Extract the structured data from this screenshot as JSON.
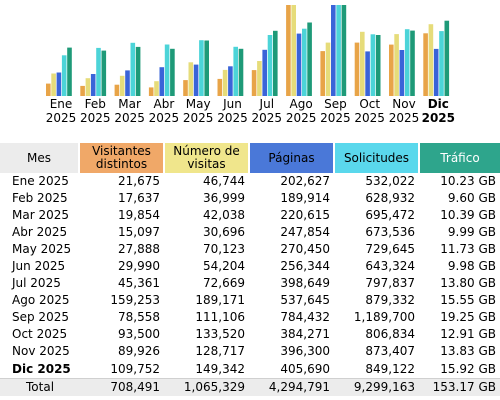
{
  "colors": {
    "visitors": "#e8a448",
    "visits": "#e6dc7a",
    "pages": "#3a64d8",
    "hits": "#4cd4d8",
    "bandwidth": "#1e9a78"
  },
  "headers": {
    "month": "Mes",
    "visitors": "Visitantes distintos",
    "visits": "Número de visitas",
    "pages": "Páginas",
    "hits": "Solicitudes",
    "bandwidth": "Tráfico"
  },
  "chart_data": {
    "type": "bar",
    "categories": [
      "Ene 2025",
      "Feb 2025",
      "Mar 2025",
      "Abr 2025",
      "May 2025",
      "Jun 2025",
      "Jul 2025",
      "Ago 2025",
      "Sep 2025",
      "Oct 2025",
      "Nov 2025",
      "Dic 2025"
    ],
    "series": [
      {
        "name": "Visitantes distintos",
        "values": [
          21675,
          17637,
          19854,
          15097,
          27888,
          29990,
          45361,
          159253,
          78558,
          93500,
          89926,
          109752
        ]
      },
      {
        "name": "Número de visitas",
        "values": [
          46744,
          36999,
          42038,
          30696,
          70123,
          54204,
          72669,
          189171,
          111106,
          133520,
          128717,
          149342
        ]
      },
      {
        "name": "Páginas",
        "values": [
          202627,
          189914,
          220615,
          247854,
          270450,
          256344,
          398649,
          537645,
          784432,
          384271,
          396300,
          405690
        ]
      },
      {
        "name": "Solicitudes",
        "values": [
          532022,
          628932,
          695472,
          673536,
          729645,
          643324,
          797837,
          879332,
          1189700,
          806834,
          873407,
          849122
        ]
      },
      {
        "name": "Tráfico",
        "values": [
          10.23,
          9.6,
          10.39,
          9.99,
          11.73,
          9.98,
          13.8,
          15.55,
          19.25,
          12.91,
          13.83,
          15.92
        ]
      }
    ]
  },
  "months": [
    {
      "m": "Ene",
      "y": "2025"
    },
    {
      "m": "Feb",
      "y": "2025"
    },
    {
      "m": "Mar",
      "y": "2025"
    },
    {
      "m": "Abr",
      "y": "2025"
    },
    {
      "m": "May",
      "y": "2025"
    },
    {
      "m": "Jun",
      "y": "2025"
    },
    {
      "m": "Jul",
      "y": "2025"
    },
    {
      "m": "Ago",
      "y": "2025"
    },
    {
      "m": "Sep",
      "y": "2025"
    },
    {
      "m": "Oct",
      "y": "2025"
    },
    {
      "m": "Nov",
      "y": "2025"
    },
    {
      "m": "Dic",
      "y": "2025"
    }
  ],
  "rows": [
    {
      "month": "Ene 2025",
      "visitors": "21,675",
      "visits": "46,744",
      "pages": "202,627",
      "hits": "532,022",
      "bandwidth": "10.23 GB"
    },
    {
      "month": "Feb 2025",
      "visitors": "17,637",
      "visits": "36,999",
      "pages": "189,914",
      "hits": "628,932",
      "bandwidth": "9.60 GB"
    },
    {
      "month": "Mar 2025",
      "visitors": "19,854",
      "visits": "42,038",
      "pages": "220,615",
      "hits": "695,472",
      "bandwidth": "10.39 GB"
    },
    {
      "month": "Abr 2025",
      "visitors": "15,097",
      "visits": "30,696",
      "pages": "247,854",
      "hits": "673,536",
      "bandwidth": "9.99 GB"
    },
    {
      "month": "May 2025",
      "visitors": "27,888",
      "visits": "70,123",
      "pages": "270,450",
      "hits": "729,645",
      "bandwidth": "11.73 GB"
    },
    {
      "month": "Jun 2025",
      "visitors": "29,990",
      "visits": "54,204",
      "pages": "256,344",
      "hits": "643,324",
      "bandwidth": "9.98 GB"
    },
    {
      "month": "Jul 2025",
      "visitors": "45,361",
      "visits": "72,669",
      "pages": "398,649",
      "hits": "797,837",
      "bandwidth": "13.80 GB"
    },
    {
      "month": "Ago 2025",
      "visitors": "159,253",
      "visits": "189,171",
      "pages": "537,645",
      "hits": "879,332",
      "bandwidth": "15.55 GB"
    },
    {
      "month": "Sep 2025",
      "visitors": "78,558",
      "visits": "111,106",
      "pages": "784,432",
      "hits": "1,189,700",
      "bandwidth": "19.25 GB"
    },
    {
      "month": "Oct 2025",
      "visitors": "93,500",
      "visits": "133,520",
      "pages": "384,271",
      "hits": "806,834",
      "bandwidth": "12.91 GB"
    },
    {
      "month": "Nov 2025",
      "visitors": "89,926",
      "visits": "128,717",
      "pages": "396,300",
      "hits": "873,407",
      "bandwidth": "13.83 GB"
    },
    {
      "month": "Dic 2025",
      "visitors": "109,752",
      "visits": "149,342",
      "pages": "405,690",
      "hits": "849,122",
      "bandwidth": "15.92 GB"
    }
  ],
  "total": {
    "label": "Total",
    "visitors": "708,491",
    "visits": "1,065,329",
    "pages": "4,294,791",
    "hits": "9,299,163",
    "bandwidth": "153.17 GB"
  }
}
